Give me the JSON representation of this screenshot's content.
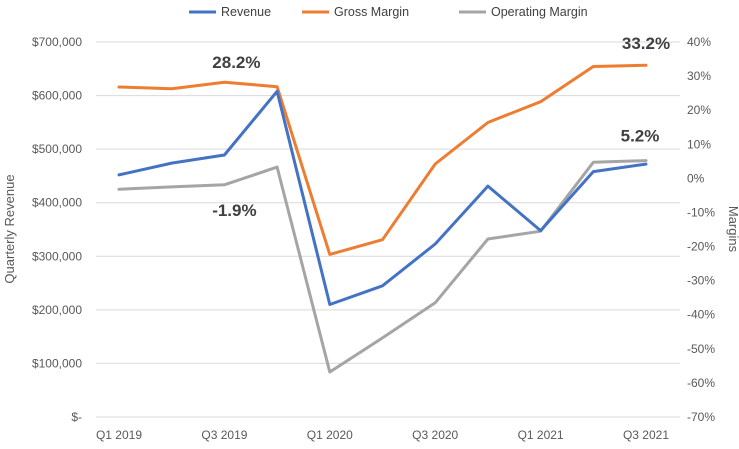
{
  "chart_data": {
    "type": "line",
    "categories": [
      "Q1 2019",
      "Q2 2019",
      "Q3 2019",
      "Q4 2019",
      "Q1 2020",
      "Q2 2020",
      "Q3 2020",
      "Q4 2020",
      "Q1 2021",
      "Q2 2021",
      "Q3 2021"
    ],
    "x_tick_labels": [
      "Q1 2019",
      "Q3 2019",
      "Q1 2020",
      "Q3 2020",
      "Q1 2021",
      "Q3 2021"
    ],
    "left_axis": {
      "label": "Quarterly Revenue",
      "range": [
        0,
        700000
      ],
      "ticks": [
        0,
        100000,
        200000,
        300000,
        400000,
        500000,
        600000,
        700000
      ],
      "tick_labels": [
        "$-",
        "$100,000",
        "$200,000",
        "$300,000",
        "$400,000",
        "$500,000",
        "$600,000",
        "$700,000"
      ]
    },
    "right_axis": {
      "label": "Margins",
      "range": [
        -70,
        40
      ],
      "ticks": [
        40,
        30,
        20,
        10,
        0,
        -10,
        -20,
        -30,
        -40,
        -50,
        -60,
        -70
      ],
      "tick_labels": [
        "40%",
        "30%",
        "20%",
        "10%",
        "0%",
        "-10%",
        "-20%",
        "-30%",
        "-40%",
        "-50%",
        "-60%",
        "-70%"
      ]
    },
    "grid": true,
    "legend_position": "top",
    "series": [
      {
        "name": "Revenue",
        "axis": "left",
        "color": "#4472c4",
        "values": [
          452000,
          474000,
          489000,
          608000,
          210000,
          245000,
          323000,
          431000,
          348000,
          458000,
          472000
        ]
      },
      {
        "name": "Gross Margin",
        "axis": "right",
        "color": "#ed7d31",
        "values": [
          26.8,
          26.3,
          28.2,
          26.9,
          -22.3,
          -18.0,
          4.2,
          16.4,
          22.5,
          32.8,
          33.2
        ]
      },
      {
        "name": "Operating Margin",
        "axis": "right",
        "color": "#a5a5a5",
        "values": [
          -3.2,
          -2.5,
          -1.9,
          3.3,
          -56.8,
          -46.8,
          -36.5,
          -17.8,
          -15.5,
          4.7,
          5.2
        ]
      }
    ],
    "annotations": [
      {
        "text": "28.2%",
        "series": "Gross Margin",
        "index": 2
      },
      {
        "text": "-1.9%",
        "series": "Operating Margin",
        "index": 2
      },
      {
        "text": "33.2%",
        "series": "Gross Margin",
        "index": 10
      },
      {
        "text": "5.2%",
        "series": "Operating Margin",
        "index": 10
      }
    ]
  }
}
